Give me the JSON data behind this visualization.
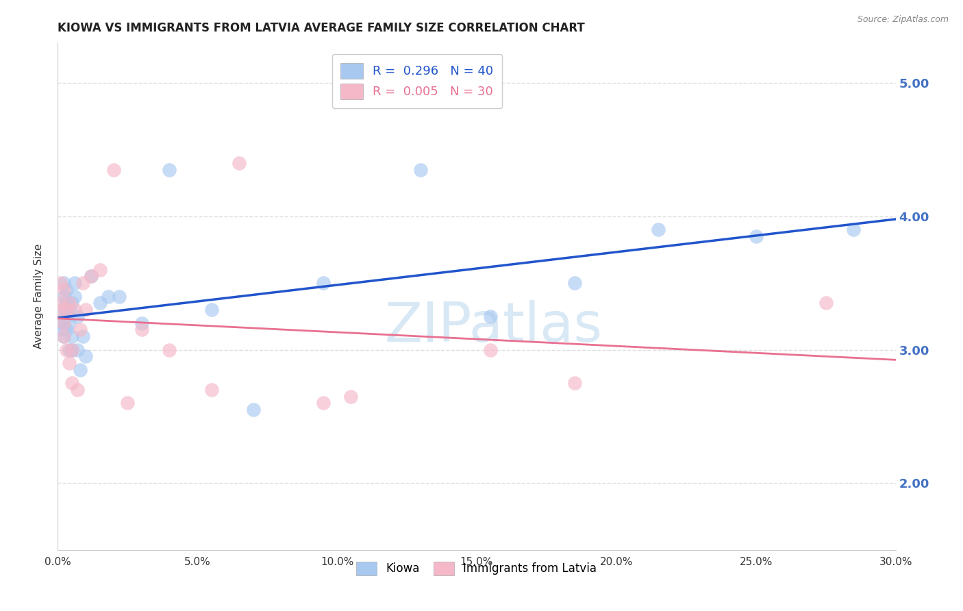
{
  "title": "KIOWA VS IMMIGRANTS FROM LATVIA AVERAGE FAMILY SIZE CORRELATION CHART",
  "source": "Source: ZipAtlas.com",
  "ylabel": "Average Family Size",
  "xlim": [
    0.0,
    0.3
  ],
  "ylim": [
    1.5,
    5.3
  ],
  "yticks": [
    2.0,
    3.0,
    4.0,
    5.0
  ],
  "xticks": [
    0.0,
    0.05,
    0.1,
    0.15,
    0.2,
    0.25,
    0.3
  ],
  "xtick_labels": [
    "0.0%",
    "5.0%",
    "10.0%",
    "15.0%",
    "20.0%",
    "25.0%",
    "30.0%"
  ],
  "kiowa_color": "#a8c8f0",
  "latvia_color": "#f4b8c8",
  "kiowa_x": [
    0.001,
    0.001,
    0.001,
    0.002,
    0.002,
    0.002,
    0.002,
    0.003,
    0.003,
    0.003,
    0.003,
    0.003,
    0.004,
    0.004,
    0.004,
    0.005,
    0.005,
    0.005,
    0.006,
    0.006,
    0.007,
    0.007,
    0.008,
    0.009,
    0.01,
    0.012,
    0.015,
    0.018,
    0.022,
    0.03,
    0.04,
    0.055,
    0.07,
    0.095,
    0.13,
    0.155,
    0.185,
    0.215,
    0.25,
    0.285
  ],
  "kiowa_y": [
    3.2,
    3.3,
    3.15,
    3.4,
    3.5,
    3.2,
    3.1,
    3.35,
    3.3,
    3.25,
    3.45,
    3.15,
    3.3,
    3.2,
    3.0,
    3.35,
    3.1,
    3.0,
    3.5,
    3.4,
    3.25,
    3.0,
    2.85,
    3.1,
    2.95,
    3.55,
    3.35,
    3.4,
    3.4,
    3.2,
    4.35,
    3.3,
    2.55,
    3.5,
    4.35,
    3.25,
    3.5,
    3.9,
    3.85,
    3.9
  ],
  "latvia_x": [
    0.001,
    0.001,
    0.001,
    0.002,
    0.002,
    0.002,
    0.003,
    0.003,
    0.004,
    0.004,
    0.005,
    0.005,
    0.006,
    0.007,
    0.008,
    0.009,
    0.01,
    0.012,
    0.015,
    0.02,
    0.025,
    0.03,
    0.04,
    0.055,
    0.065,
    0.095,
    0.105,
    0.155,
    0.185,
    0.275
  ],
  "latvia_y": [
    3.35,
    3.5,
    3.3,
    3.2,
    3.45,
    3.1,
    3.0,
    3.3,
    3.35,
    2.9,
    2.75,
    3.0,
    3.3,
    2.7,
    3.15,
    3.5,
    3.3,
    3.55,
    3.6,
    4.35,
    2.6,
    3.15,
    3.0,
    2.7,
    4.4,
    2.6,
    2.65,
    3.0,
    2.75,
    3.35
  ],
  "background_color": "#ffffff",
  "grid_color": "#dddddd",
  "title_fontsize": 12,
  "axis_label_fontsize": 11,
  "tick_fontsize": 11,
  "right_tick_color": "#4472c4",
  "trend_blue_color": "#2255cc",
  "trend_pink_color": "#e87090",
  "watermark": "ZIPatlas",
  "watermark_color": "#d8e8f5"
}
